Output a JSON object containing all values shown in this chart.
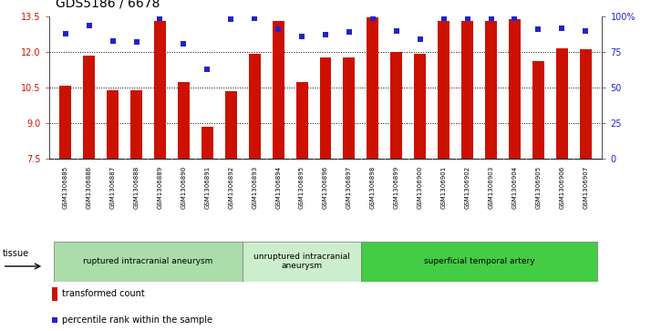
{
  "title": "GDS5186 / 6678",
  "samples": [
    "GSM1306885",
    "GSM1306886",
    "GSM1306887",
    "GSM1306888",
    "GSM1306889",
    "GSM1306890",
    "GSM1306891",
    "GSM1306892",
    "GSM1306893",
    "GSM1306894",
    "GSM1306895",
    "GSM1306896",
    "GSM1306897",
    "GSM1306898",
    "GSM1306899",
    "GSM1306900",
    "GSM1306901",
    "GSM1306902",
    "GSM1306903",
    "GSM1306904",
    "GSM1306905",
    "GSM1306906",
    "GSM1306907"
  ],
  "bar_values": [
    10.6,
    11.85,
    10.4,
    10.38,
    13.32,
    10.75,
    8.87,
    10.35,
    11.93,
    13.32,
    10.73,
    11.78,
    11.78,
    13.45,
    12.0,
    11.92,
    13.32,
    13.32,
    13.32,
    13.38,
    11.62,
    12.17,
    12.13
  ],
  "percentile_values": [
    88,
    94,
    83,
    82,
    99,
    81,
    63,
    98,
    99,
    91,
    86,
    87,
    89,
    99,
    90,
    84,
    99,
    99,
    99,
    99,
    91,
    92,
    90
  ],
  "ylim_left": [
    7.5,
    13.5
  ],
  "ylim_right": [
    0,
    100
  ],
  "yticks_left": [
    7.5,
    9.0,
    10.5,
    12.0,
    13.5
  ],
  "yticks_right": [
    0,
    25,
    50,
    75,
    100
  ],
  "ytick_labels_right": [
    "0",
    "25",
    "50",
    "75",
    "100%"
  ],
  "bar_color": "#cc1100",
  "dot_color": "#2222cc",
  "groups": [
    {
      "label": "ruptured intracranial aneurysm",
      "start": 0,
      "end": 8,
      "color": "#aaddaa"
    },
    {
      "label": "unruptured intracranial\naneurysm",
      "start": 8,
      "end": 13,
      "color": "#cceecc"
    },
    {
      "label": "superficial temporal artery",
      "start": 13,
      "end": 23,
      "color": "#44cc44"
    }
  ],
  "tissue_label": "tissue",
  "legend_bar_label": "transformed count",
  "legend_dot_label": "percentile rank within the sample",
  "title_fontsize": 10,
  "tick_fontsize": 7,
  "xtick_fontsize": 5.0,
  "group_fontsize": 6.5,
  "legend_fontsize": 7
}
